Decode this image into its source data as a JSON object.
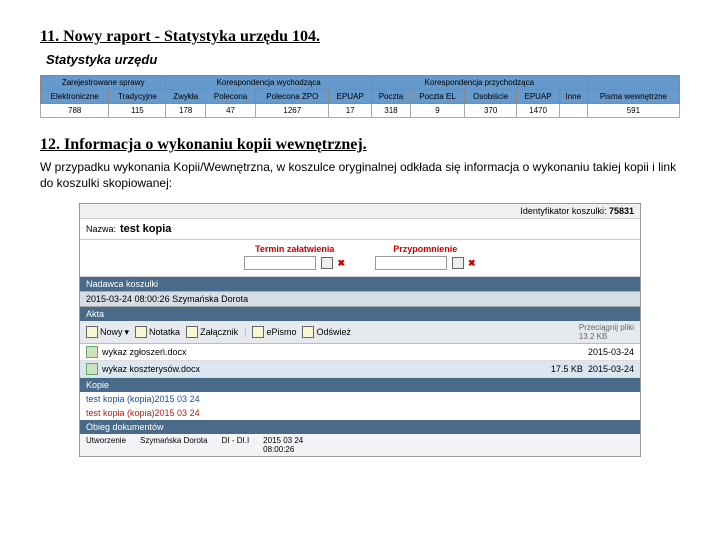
{
  "section11": {
    "heading": "11. Nowy raport  - Statystyka urzędu 104.",
    "subtitle": "Statystyka urzędu",
    "table": {
      "group_headers": [
        "Zarejestrowane sprawy",
        "Korespondencja wychodząca",
        "Korespondencja przychodząca",
        ""
      ],
      "sub_headers": [
        "Elektroniczne",
        "Tradycyjne",
        "Zwykła",
        "Polecona",
        "Polecona ZPO",
        "EPUAP",
        "Poczta",
        "Poczta EL",
        "Osobiście",
        "EPUAP",
        "Inne",
        "Pisma wewnętrzne"
      ],
      "row": [
        "788",
        "115",
        "178",
        "47",
        "1267",
        "17",
        "318",
        "9",
        "370",
        "1470",
        "",
        "591"
      ]
    }
  },
  "section12": {
    "heading": "12. Informacja o wykonaniu kopii wewnętrznej.",
    "paragraph": "W przypadku wykonania Kopii/Wewnętrzna, w koszulce oryginalnej odkłada się informacja o wykonaniu takiej kopii i link do koszulki skopiowanej:"
  },
  "form": {
    "id_label": "Identyfikator koszulki:",
    "id_value": "75831",
    "name_label": "Nazwa:",
    "name_value": "test kopia",
    "term_label": "Termin załatwienia",
    "remind_label": "Przypomnienie",
    "sender_bar": "Nadawca koszulki",
    "sender_line": "2015-03-24 08:00:26   Szymańska Dorota",
    "akta_bar": "Akta",
    "toolbar": {
      "new": "Nowy",
      "note": "Notatka",
      "attach": "Załącznik",
      "email": "ePismo",
      "refresh": "Odśwież",
      "drag": "Przeciągnij pliki"
    },
    "file1": {
      "name": "wykaz zgłoszeń.docx",
      "date": "2015-03-24",
      "size": "13.2 KB"
    },
    "file2": {
      "name": "wykaz koszterysów.docx",
      "date": "2015-03-24",
      "size": "17.5 KB"
    },
    "kopie_bar": "Kopie",
    "copy1": "test kopia (kopia)2015 03 24",
    "copy2": "test kopia (kopia)2015 03 24",
    "obieg_bar": "Obieg dokumentów",
    "obieg": {
      "c1": "Utworzenie",
      "c2": "Szymańska Dorota",
      "c3": "DI - DI.I",
      "c4": "2015 03 24\n08:00:26"
    }
  }
}
